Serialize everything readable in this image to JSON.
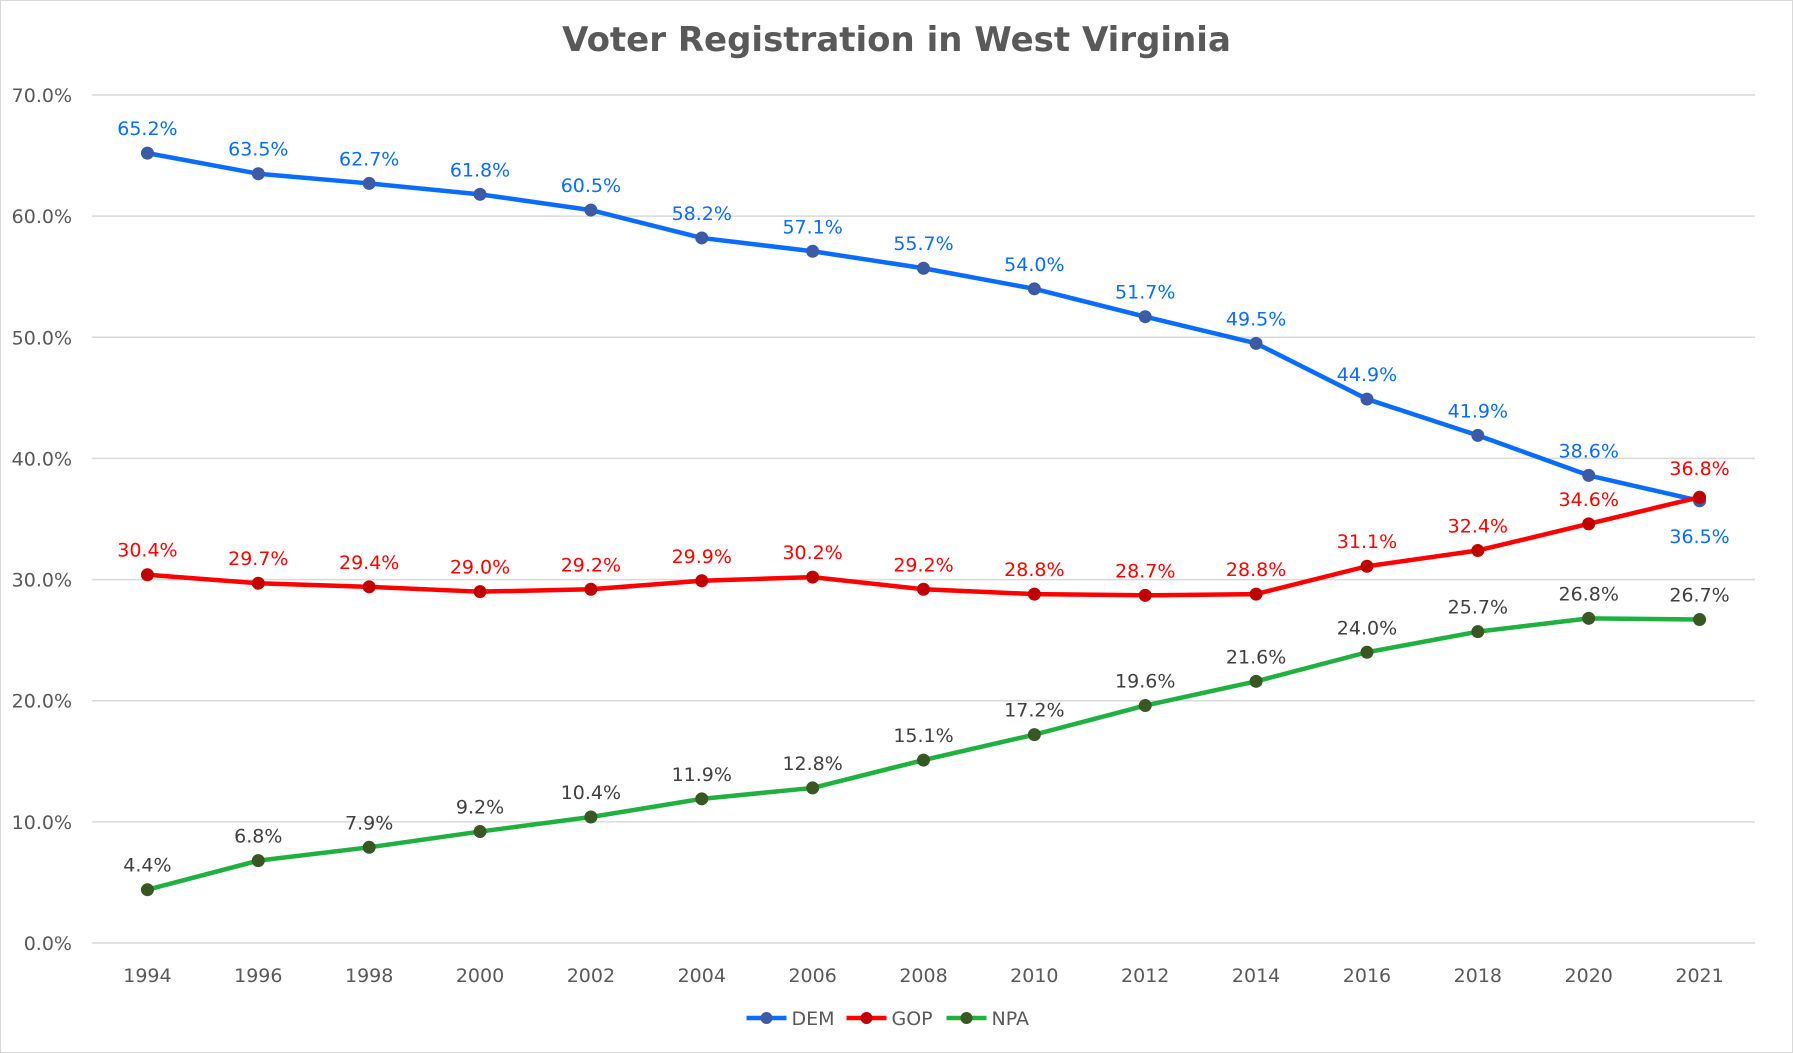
{
  "chart_data": {
    "type": "line",
    "title": "Voter Registration in West Virginia",
    "xlabel": "",
    "ylabel": "",
    "categories": [
      "1994",
      "1996",
      "1998",
      "2000",
      "2002",
      "2004",
      "2006",
      "2008",
      "2010",
      "2012",
      "2014",
      "2016",
      "2018",
      "2020",
      "2021"
    ],
    "ylim": [
      0,
      70
    ],
    "y_ticks": [
      "0.0%",
      "10.0%",
      "20.0%",
      "30.0%",
      "40.0%",
      "50.0%",
      "60.0%",
      "70.0%"
    ],
    "y_tick_values": [
      0,
      10,
      20,
      30,
      40,
      50,
      60,
      70
    ],
    "grid": true,
    "legend_position": "bottom",
    "series": [
      {
        "name": "DEM",
        "color": "#0a6cff",
        "marker_color": "#3b5ba5",
        "label_color": "#0a6cff",
        "values": [
          65.2,
          63.5,
          62.7,
          61.8,
          60.5,
          58.2,
          57.1,
          55.7,
          54.0,
          51.7,
          49.5,
          44.9,
          41.9,
          38.6,
          36.5
        ],
        "labels": [
          "65.2%",
          "63.5%",
          "62.7%",
          "61.8%",
          "60.5%",
          "58.2%",
          "57.1%",
          "55.7%",
          "54.0%",
          "51.7%",
          "49.5%",
          "44.9%",
          "41.9%",
          "38.6%",
          "36.5%"
        ]
      },
      {
        "name": "GOP",
        "color": "#ff0000",
        "marker_color": "#c00000",
        "label_color": "#ff0000",
        "values": [
          30.4,
          29.7,
          29.4,
          29.0,
          29.2,
          29.9,
          30.2,
          29.2,
          28.8,
          28.7,
          28.8,
          31.1,
          32.4,
          34.6,
          36.8
        ],
        "labels": [
          "30.4%",
          "29.7%",
          "29.4%",
          "29.0%",
          "29.2%",
          "29.9%",
          "30.2%",
          "29.2%",
          "28.8%",
          "28.7%",
          "28.8%",
          "31.1%",
          "32.4%",
          "34.6%",
          "36.8%"
        ]
      },
      {
        "name": "NPA",
        "color": "#1fb040",
        "marker_color": "#385723",
        "label_color": "#404040",
        "values": [
          4.4,
          6.8,
          7.9,
          9.2,
          10.4,
          11.9,
          12.8,
          15.1,
          17.2,
          19.6,
          21.6,
          24.0,
          25.7,
          26.8,
          26.7
        ],
        "labels": [
          "4.4%",
          "6.8%",
          "7.9%",
          "9.2%",
          "10.4%",
          "11.9%",
          "12.8%",
          "15.1%",
          "17.2%",
          "19.6%",
          "21.6%",
          "24.0%",
          "25.7%",
          "26.8%",
          "26.7%"
        ]
      }
    ]
  }
}
